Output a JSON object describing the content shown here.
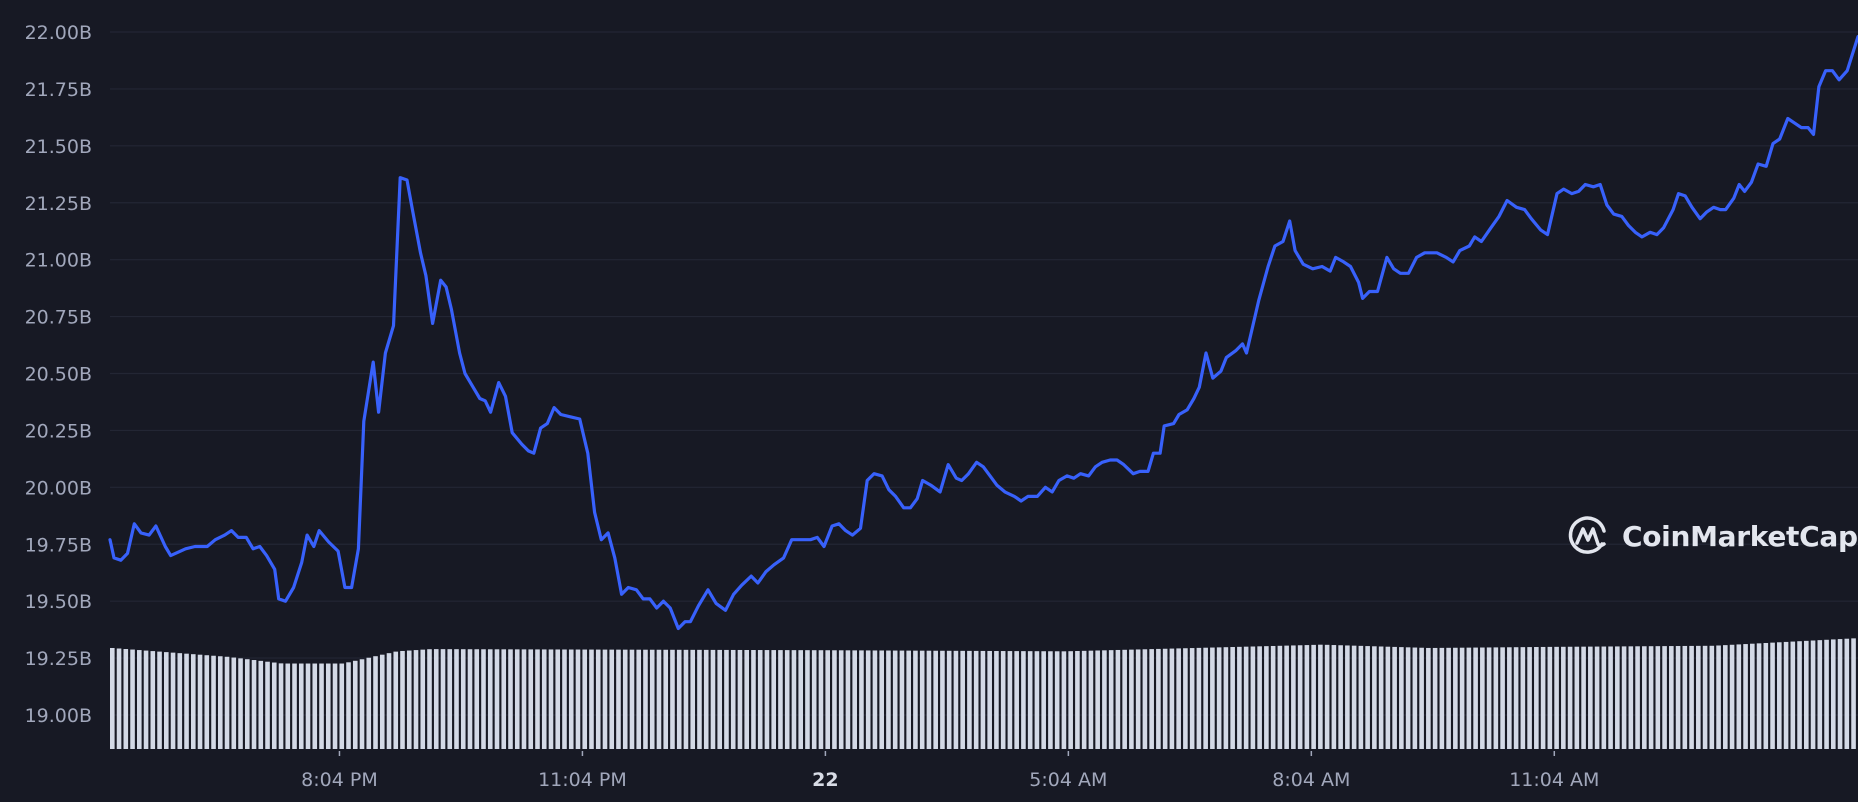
{
  "brand": {
    "watermark": "CoinMarketCap"
  },
  "colors": {
    "background": "#171924",
    "grid": "#232634",
    "line": "#3861fb",
    "volume_bars": "#d3d9e6",
    "axis_text": "#a1a7bb"
  },
  "chart_data": {
    "type": "line",
    "title": "",
    "xlabel": "",
    "ylabel": "",
    "ylim": [
      18.9,
      22.0
    ],
    "grid": true,
    "y_ticks": [
      "22.00B",
      "21.75B",
      "21.50B",
      "21.25B",
      "21.00B",
      "20.75B",
      "20.50B",
      "20.25B",
      "20.00B",
      "19.75B",
      "19.50B",
      "19.25B",
      "19.00B"
    ],
    "y_tick_values": [
      22.0,
      21.75,
      21.5,
      21.25,
      21.0,
      20.75,
      20.5,
      20.25,
      20.0,
      19.75,
      19.5,
      19.25,
      19.0
    ],
    "x_ticks": [
      {
        "time": "21 20:04",
        "label": "8:04 PM"
      },
      {
        "time": "21 23:04",
        "label": "11:04 PM"
      },
      {
        "time": "22 02:04",
        "label": "22",
        "day": true
      },
      {
        "time": "22 05:04",
        "label": "5:04 AM"
      },
      {
        "time": "22 08:04",
        "label": "8:04 AM"
      },
      {
        "time": "22 11:04",
        "label": "11:04 AM"
      }
    ],
    "x_range": [
      "21 17:14",
      "22 14:49"
    ],
    "series": [
      {
        "unit": "B",
        "points": [
          [
            "21 17:14",
            19.77
          ],
          [
            "21 17:17",
            19.69
          ],
          [
            "21 17:22",
            19.68
          ],
          [
            "21 17:27",
            19.71
          ],
          [
            "21 17:32",
            19.84
          ],
          [
            "21 17:37",
            19.8
          ],
          [
            "21 17:43",
            19.79
          ],
          [
            "21 17:48",
            19.83
          ],
          [
            "21 17:55",
            19.74
          ],
          [
            "21 17:59",
            19.7
          ],
          [
            "21 18:10",
            19.73
          ],
          [
            "21 18:17",
            19.74
          ],
          [
            "21 18:26",
            19.74
          ],
          [
            "21 18:32",
            19.77
          ],
          [
            "21 18:39",
            19.79
          ],
          [
            "21 18:44",
            19.81
          ],
          [
            "21 18:49",
            19.78
          ],
          [
            "21 18:55",
            19.78
          ],
          [
            "21 19:00",
            19.73
          ],
          [
            "21 19:05",
            19.74
          ],
          [
            "21 19:10",
            19.7
          ],
          [
            "21 19:16",
            19.64
          ],
          [
            "21 19:19",
            19.51
          ],
          [
            "21 19:24",
            19.5
          ],
          [
            "21 19:30",
            19.56
          ],
          [
            "21 19:36",
            19.67
          ],
          [
            "21 19:40",
            19.79
          ],
          [
            "21 19:45",
            19.74
          ],
          [
            "21 19:49",
            19.81
          ],
          [
            "21 19:56",
            19.76
          ],
          [
            "21 20:03",
            19.72
          ],
          [
            "21 20:08",
            19.56
          ],
          [
            "21 20:13",
            19.56
          ],
          [
            "21 20:18",
            19.73
          ],
          [
            "21 20:22",
            20.29
          ],
          [
            "21 20:29",
            20.55
          ],
          [
            "21 20:33",
            20.33
          ],
          [
            "21 20:38",
            20.59
          ],
          [
            "21 20:44",
            20.71
          ],
          [
            "21 20:49",
            21.36
          ],
          [
            "21 20:54",
            21.35
          ],
          [
            "21 20:58",
            21.22
          ],
          [
            "21 21:04",
            21.03
          ],
          [
            "21 21:08",
            20.93
          ],
          [
            "21 21:13",
            20.72
          ],
          [
            "21 21:19",
            20.91
          ],
          [
            "21 21:23",
            20.88
          ],
          [
            "21 21:27",
            20.78
          ],
          [
            "21 21:33",
            20.59
          ],
          [
            "21 21:37",
            20.5
          ],
          [
            "21 21:43",
            20.44
          ],
          [
            "21 21:48",
            20.39
          ],
          [
            "21 21:52",
            20.38
          ],
          [
            "21 21:56",
            20.33
          ],
          [
            "21 22:02",
            20.46
          ],
          [
            "21 22:07",
            20.4
          ],
          [
            "21 22:12",
            20.24
          ],
          [
            "21 22:19",
            20.19
          ],
          [
            "21 22:24",
            20.16
          ],
          [
            "21 22:28",
            20.15
          ],
          [
            "21 22:33",
            20.26
          ],
          [
            "21 22:38",
            20.28
          ],
          [
            "21 22:43",
            20.35
          ],
          [
            "21 22:48",
            20.32
          ],
          [
            "21 22:55",
            20.31
          ],
          [
            "21 23:02",
            20.3
          ],
          [
            "21 23:08",
            20.15
          ],
          [
            "21 23:13",
            19.89
          ],
          [
            "21 23:18",
            19.77
          ],
          [
            "21 23:23",
            19.8
          ],
          [
            "21 23:28",
            19.69
          ],
          [
            "21 23:33",
            19.53
          ],
          [
            "21 23:38",
            19.56
          ],
          [
            "21 23:44",
            19.55
          ],
          [
            "21 23:49",
            19.51
          ],
          [
            "21 23:54",
            19.51
          ],
          [
            "21 23:59",
            19.47
          ],
          [
            "22 00:04",
            19.5
          ],
          [
            "22 00:09",
            19.47
          ],
          [
            "22 00:15",
            19.38
          ],
          [
            "22 00:20",
            19.41
          ],
          [
            "22 00:24",
            19.41
          ],
          [
            "22 00:30",
            19.48
          ],
          [
            "22 00:37",
            19.55
          ],
          [
            "22 00:43",
            19.49
          ],
          [
            "22 00:50",
            19.46
          ],
          [
            "22 00:56",
            19.53
          ],
          [
            "22 01:02",
            19.57
          ],
          [
            "22 01:09",
            19.61
          ],
          [
            "22 01:14",
            19.58
          ],
          [
            "22 01:20",
            19.63
          ],
          [
            "22 01:26",
            19.66
          ],
          [
            "22 01:33",
            19.69
          ],
          [
            "22 01:39",
            19.77
          ],
          [
            "22 01:46",
            19.77
          ],
          [
            "22 01:53",
            19.77
          ],
          [
            "22 01:58",
            19.78
          ],
          [
            "22 02:03",
            19.74
          ],
          [
            "22 02:09",
            19.83
          ],
          [
            "22 02:14",
            19.84
          ],
          [
            "22 02:19",
            19.81
          ],
          [
            "22 02:24",
            19.79
          ],
          [
            "22 02:30",
            19.82
          ],
          [
            "22 02:35",
            20.03
          ],
          [
            "22 02:40",
            20.06
          ],
          [
            "22 02:46",
            20.05
          ],
          [
            "22 02:51",
            19.99
          ],
          [
            "22 02:56",
            19.96
          ],
          [
            "22 03:02",
            19.91
          ],
          [
            "22 03:07",
            19.91
          ],
          [
            "22 03:12",
            19.95
          ],
          [
            "22 03:16",
            20.03
          ],
          [
            "22 03:22",
            20.01
          ],
          [
            "22 03:29",
            19.98
          ],
          [
            "22 03:35",
            20.1
          ],
          [
            "22 03:41",
            20.04
          ],
          [
            "22 03:45",
            20.03
          ],
          [
            "22 03:50",
            20.06
          ],
          [
            "22 03:56",
            20.11
          ],
          [
            "22 04:01",
            20.09
          ],
          [
            "22 04:06",
            20.05
          ],
          [
            "22 04:11",
            20.01
          ],
          [
            "22 04:17",
            19.98
          ],
          [
            "22 04:24",
            19.96
          ],
          [
            "22 04:29",
            19.94
          ],
          [
            "22 04:34",
            19.96
          ],
          [
            "22 04:41",
            19.96
          ],
          [
            "22 04:47",
            20.0
          ],
          [
            "22 04:52",
            19.98
          ],
          [
            "22 04:57",
            20.03
          ],
          [
            "22 05:03",
            20.05
          ],
          [
            "22 05:08",
            20.04
          ],
          [
            "22 05:13",
            20.06
          ],
          [
            "22 05:19",
            20.05
          ],
          [
            "22 05:24",
            20.09
          ],
          [
            "22 05:29",
            20.11
          ],
          [
            "22 05:35",
            20.12
          ],
          [
            "22 05:40",
            20.12
          ],
          [
            "22 05:45",
            20.1
          ],
          [
            "22 05:52",
            20.06
          ],
          [
            "22 05:57",
            20.07
          ],
          [
            "22 06:03",
            20.07
          ],
          [
            "22 06:07",
            20.15
          ],
          [
            "22 06:12",
            20.15
          ],
          [
            "22 06:15",
            20.27
          ],
          [
            "22 06:22",
            20.28
          ],
          [
            "22 06:26",
            20.32
          ],
          [
            "22 06:32",
            20.34
          ],
          [
            "22 06:37",
            20.39
          ],
          [
            "22 06:41",
            20.44
          ],
          [
            "22 06:46",
            20.59
          ],
          [
            "22 06:51",
            20.48
          ],
          [
            "22 06:57",
            20.51
          ],
          [
            "22 07:01",
            20.57
          ],
          [
            "22 07:08",
            20.6
          ],
          [
            "22 07:13",
            20.63
          ],
          [
            "22 07:16",
            20.59
          ],
          [
            "22 07:25",
            20.82
          ],
          [
            "22 07:32",
            20.97
          ],
          [
            "22 07:37",
            21.06
          ],
          [
            "22 07:43",
            21.08
          ],
          [
            "22 07:48",
            21.17
          ],
          [
            "22 07:52",
            21.04
          ],
          [
            "22 07:58",
            20.98
          ],
          [
            "22 08:05",
            20.96
          ],
          [
            "22 08:12",
            20.97
          ],
          [
            "22 08:18",
            20.95
          ],
          [
            "22 08:22",
            21.01
          ],
          [
            "22 08:28",
            20.99
          ],
          [
            "22 08:33",
            20.97
          ],
          [
            "22 08:39",
            20.9
          ],
          [
            "22 08:42",
            20.83
          ],
          [
            "22 08:47",
            20.86
          ],
          [
            "22 08:53",
            20.86
          ],
          [
            "22 09:00",
            21.01
          ],
          [
            "22 09:05",
            20.96
          ],
          [
            "22 09:10",
            20.94
          ],
          [
            "22 09:16",
            20.94
          ],
          [
            "22 09:22",
            21.01
          ],
          [
            "22 09:28",
            21.03
          ],
          [
            "22 09:37",
            21.03
          ],
          [
            "22 09:44",
            21.01
          ],
          [
            "22 09:49",
            20.99
          ],
          [
            "22 09:54",
            21.04
          ],
          [
            "22 10:01",
            21.06
          ],
          [
            "22 10:05",
            21.1
          ],
          [
            "22 10:10",
            21.08
          ],
          [
            "22 10:17",
            21.14
          ],
          [
            "22 10:23",
            21.19
          ],
          [
            "22 10:29",
            21.26
          ],
          [
            "22 10:36",
            21.23
          ],
          [
            "22 10:42",
            21.22
          ],
          [
            "22 10:47",
            21.18
          ],
          [
            "22 10:54",
            21.13
          ],
          [
            "22 10:59",
            21.11
          ],
          [
            "22 11:06",
            21.29
          ],
          [
            "22 11:11",
            21.31
          ],
          [
            "22 11:17",
            21.29
          ],
          [
            "22 11:22",
            21.3
          ],
          [
            "22 11:27",
            21.33
          ],
          [
            "22 11:33",
            21.32
          ],
          [
            "22 11:38",
            21.33
          ],
          [
            "22 11:43",
            21.24
          ],
          [
            "22 11:48",
            21.2
          ],
          [
            "22 11:54",
            21.19
          ],
          [
            "22 11:59",
            21.15
          ],
          [
            "22 12:04",
            21.12
          ],
          [
            "22 12:09",
            21.1
          ],
          [
            "22 12:15",
            21.12
          ],
          [
            "22 12:20",
            21.11
          ],
          [
            "22 12:25",
            21.14
          ],
          [
            "22 12:32",
            21.22
          ],
          [
            "22 12:36",
            21.29
          ],
          [
            "22 12:41",
            21.28
          ],
          [
            "22 12:46",
            21.23
          ],
          [
            "22 12:52",
            21.18
          ],
          [
            "22 12:57",
            21.21
          ],
          [
            "22 13:02",
            21.23
          ],
          [
            "22 13:07",
            21.22
          ],
          [
            "22 13:11",
            21.22
          ],
          [
            "22 13:17",
            21.27
          ],
          [
            "22 13:21",
            21.33
          ],
          [
            "22 13:25",
            21.3
          ],
          [
            "22 13:30",
            21.34
          ],
          [
            "22 13:35",
            21.42
          ],
          [
            "22 13:41",
            21.41
          ],
          [
            "22 13:46",
            21.51
          ],
          [
            "22 13:51",
            21.53
          ],
          [
            "22 13:57",
            21.62
          ],
          [
            "22 14:02",
            21.6
          ],
          [
            "22 14:07",
            21.58
          ],
          [
            "22 14:12",
            21.58
          ],
          [
            "22 14:16",
            21.55
          ],
          [
            "22 14:20",
            21.76
          ],
          [
            "22 14:25",
            21.83
          ],
          [
            "22 14:30",
            21.83
          ],
          [
            "22 14:35",
            21.79
          ],
          [
            "22 14:41",
            21.83
          ],
          [
            "22 14:49",
            21.98
          ]
        ]
      }
    ],
    "volume": {
      "type": "bar",
      "axis": "none",
      "relative_levels": [
        [
          "21 17:14",
          0.91
        ],
        [
          "21 18:40",
          0.83
        ],
        [
          "21 19:20",
          0.77
        ],
        [
          "21 20:05",
          0.77
        ],
        [
          "21 20:45",
          0.88
        ],
        [
          "21 21:10",
          0.9
        ],
        [
          "22 02:00",
          0.89
        ],
        [
          "22 05:00",
          0.88
        ],
        [
          "22 07:40",
          0.93
        ],
        [
          "22 08:10",
          0.94
        ],
        [
          "22 09:30",
          0.91
        ],
        [
          "22 11:00",
          0.92
        ],
        [
          "22 13:00",
          0.93
        ],
        [
          "22 14:49",
          1.0
        ]
      ]
    }
  }
}
